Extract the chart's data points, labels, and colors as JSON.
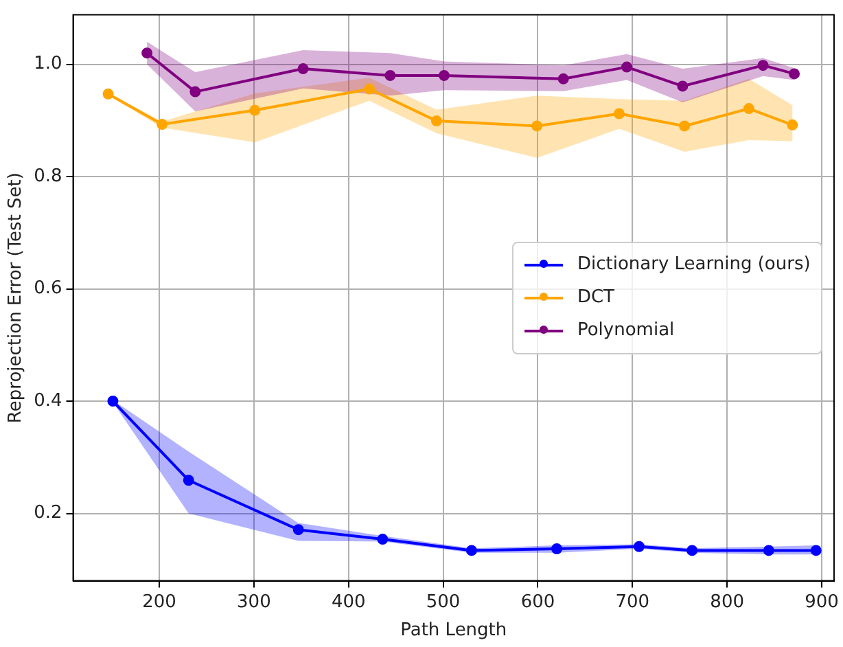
{
  "chart_data": {
    "type": "line",
    "xlabel": "Path Length",
    "ylabel": "Reprojection Error (Test Set)",
    "xlim": [
      109,
      913
    ],
    "ylim": [
      0.08,
      1.088
    ],
    "xticks": [
      200,
      300,
      400,
      500,
      600,
      700,
      800,
      900
    ],
    "yticks": [
      {
        "value": 0.2,
        "label": "0.2"
      },
      {
        "value": 0.4,
        "label": "0.4"
      },
      {
        "value": 0.6,
        "label": "0.6"
      },
      {
        "value": 0.8,
        "label": "0.8"
      },
      {
        "value": 1.0,
        "label": "1.0"
      }
    ],
    "grid": true,
    "legend": "right",
    "marker": "circle",
    "series": [
      {
        "name": "Dictionary Learning (ours)",
        "color": "#0000ff",
        "x": [
          151,
          231,
          347,
          436,
          530,
          620,
          707,
          763,
          844,
          894
        ],
        "values": [
          0.4,
          0.259,
          0.171,
          0.154,
          0.134,
          0.137,
          0.141,
          0.134,
          0.134,
          0.134
        ],
        "lower": [
          0.398,
          0.2,
          0.151,
          0.15,
          0.13,
          0.13,
          0.137,
          0.13,
          0.127,
          0.127
        ],
        "upper": [
          0.402,
          0.31,
          0.183,
          0.16,
          0.138,
          0.143,
          0.145,
          0.138,
          0.141,
          0.143
        ]
      },
      {
        "name": "DCT",
        "color": "#ffa500",
        "x": [
          146,
          203,
          301,
          422,
          493,
          599,
          686,
          755,
          823,
          869
        ],
        "values": [
          0.947,
          0.893,
          0.918,
          0.956,
          0.899,
          0.89,
          0.912,
          0.89,
          0.921,
          0.892
        ],
        "lower": [
          0.945,
          0.887,
          0.861,
          0.935,
          0.877,
          0.833,
          0.885,
          0.844,
          0.865,
          0.863
        ],
        "upper": [
          0.949,
          0.898,
          0.948,
          0.976,
          0.919,
          0.944,
          0.938,
          0.935,
          0.974,
          0.927
        ]
      },
      {
        "name": "Polynomial",
        "color": "#800080",
        "x": [
          187,
          238,
          352,
          444,
          501,
          627,
          694,
          753,
          838,
          871
        ],
        "values": [
          1.02,
          0.951,
          0.992,
          0.98,
          0.98,
          0.974,
          0.995,
          0.961,
          0.998,
          0.983
        ],
        "lower": [
          1.0,
          0.916,
          0.957,
          0.944,
          0.954,
          0.952,
          0.972,
          0.932,
          0.979,
          0.972
        ],
        "upper": [
          1.04,
          0.986,
          1.025,
          1.02,
          1.005,
          0.998,
          1.018,
          0.992,
          1.011,
          0.993
        ]
      }
    ]
  }
}
